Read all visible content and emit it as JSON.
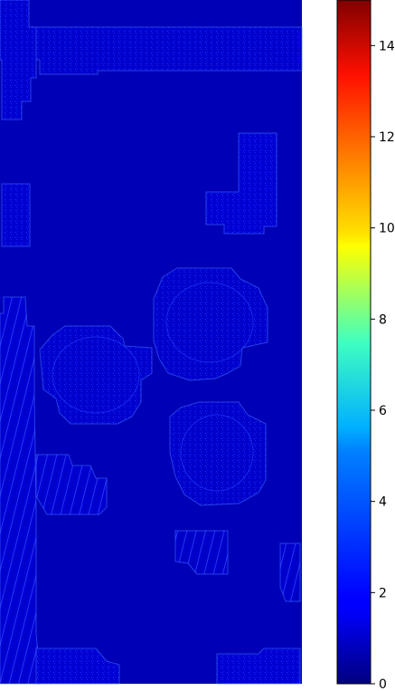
{
  "chart_data": {
    "type": "heatmap",
    "title": "",
    "xlabel": "",
    "ylabel": "",
    "colormap": "jet",
    "vmin": 0,
    "vmax": 15,
    "background_value": 0.8,
    "colorbar": {
      "placement": "right",
      "ticks": [
        0,
        2,
        4,
        6,
        8,
        10,
        12,
        14
      ],
      "tick_labels": [
        "0",
        "2",
        "4",
        "6",
        "8",
        "10",
        "12",
        "14"
      ]
    },
    "regions": [
      {
        "name": "top-band",
        "level": 1.2
      },
      {
        "name": "top-left-column",
        "level": 1.3
      },
      {
        "name": "right-upper-block",
        "level": 1.4
      },
      {
        "name": "left-middle-block",
        "level": 1.3
      },
      {
        "name": "upper-ring",
        "level": 1.1
      },
      {
        "name": "left-ring",
        "level": 1.2
      },
      {
        "name": "lower-ring",
        "level": 1.1
      },
      {
        "name": "left-strip",
        "level": 1.6
      },
      {
        "name": "fan-block",
        "level": 1.5
      },
      {
        "name": "small-block",
        "level": 1.3
      },
      {
        "name": "right-small-block",
        "level": 1.4
      },
      {
        "name": "bottom-left-block",
        "level": 1.4
      },
      {
        "name": "bottom-right-block",
        "level": 1.4
      }
    ],
    "grid": false,
    "legend": "none"
  }
}
